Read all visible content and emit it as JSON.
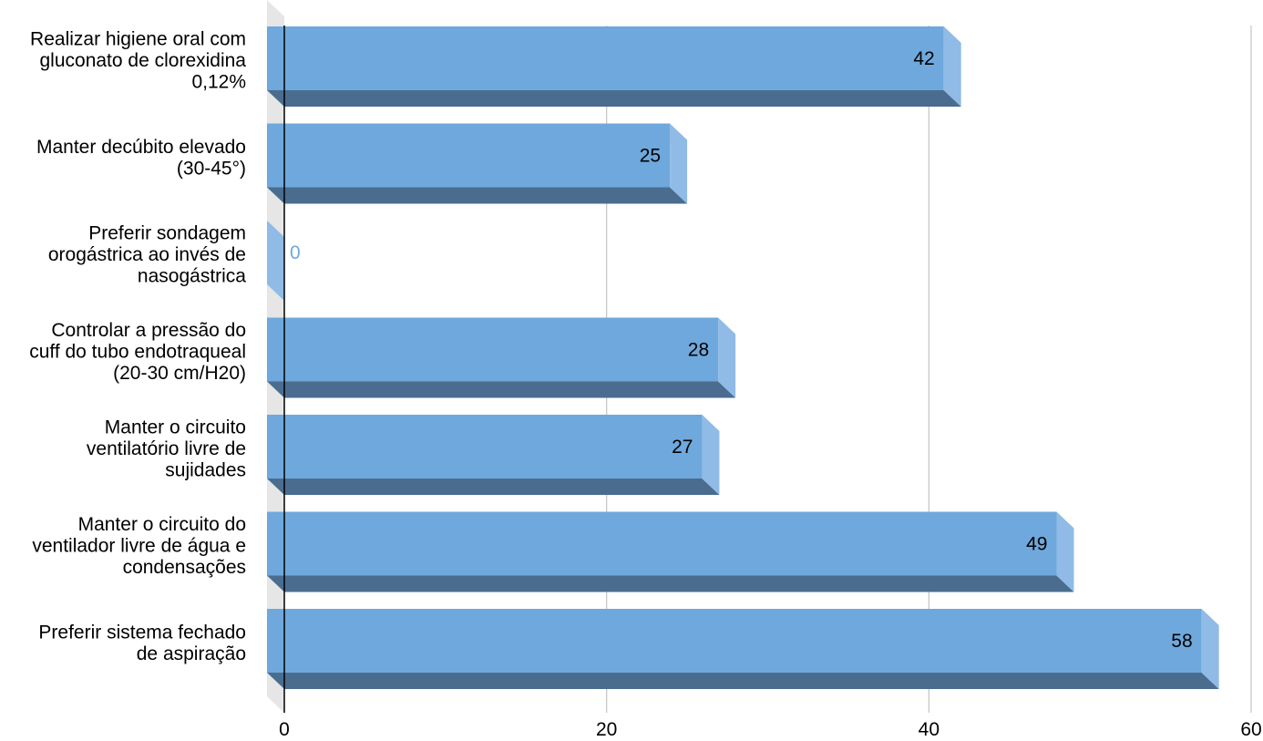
{
  "chart_data": {
    "type": "bar",
    "orientation": "horizontal",
    "style": "3d",
    "categories": [
      [
        "Realizar higiene oral com",
        "gluconato de clorexidina",
        "0,12%"
      ],
      [
        "Manter decúbito elevado",
        "(30-45°)"
      ],
      [
        "Preferir sondagem",
        "orogástrica ao invés de",
        "nasogástrica"
      ],
      [
        "Controlar a pressão do",
        "cuff do tubo endotraqueal",
        "(20-30 cm/H20)"
      ],
      [
        "Manter o circuito",
        "ventilatório livre de",
        "sujidades"
      ],
      [
        "Manter o circuito do",
        "ventilador livre de água e",
        "condensações"
      ],
      [
        "Preferir sistema fechado",
        "de aspiração"
      ]
    ],
    "values": [
      42,
      25,
      0,
      28,
      27,
      49,
      58
    ],
    "xlim": [
      0,
      60
    ],
    "xticks": [
      "0",
      "20",
      "40",
      "60"
    ],
    "grid": true,
    "legend": "none",
    "colors": {
      "bar_front": "#6fa8dc",
      "bar_bottom": "#4a6d8f",
      "bar_side": "#8fbbe6",
      "gridline": "#c8c8c8",
      "axis": "#000000",
      "wall": "#e6e6e6",
      "zero_label": "#6fa8dc"
    }
  }
}
